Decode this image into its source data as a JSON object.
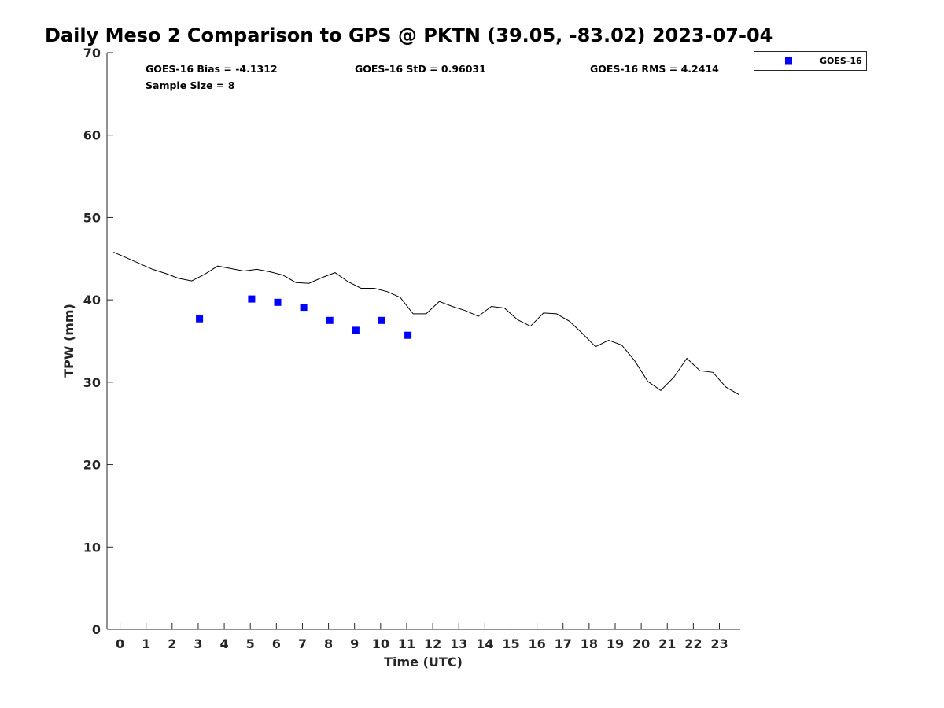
{
  "chart_data": {
    "type": "scatter",
    "title": "Daily Meso 2 Comparison to GPS @ PKTN (39.05, -83.02) 2023-07-04",
    "xlabel": "Time (UTC)",
    "ylabel": "TPW (mm)",
    "xlim": [
      -0.5,
      23.8
    ],
    "ylim": [
      0,
      70
    ],
    "xticks": [
      0,
      1,
      2,
      3,
      4,
      5,
      6,
      7,
      8,
      9,
      10,
      11,
      12,
      13,
      14,
      15,
      16,
      17,
      18,
      19,
      20,
      21,
      22,
      23
    ],
    "yticks": [
      0,
      10,
      20,
      30,
      40,
      50,
      60,
      70
    ],
    "grid": false,
    "legend_position": "top-right, outside plot",
    "stats": {
      "bias": "GOES-16 Bias = -4.1312",
      "std": "GOES-16 StD = 0.96031",
      "rms": "GOES-16 RMS = 4.2414",
      "sample": "Sample Size = 8"
    },
    "series": [
      {
        "type": "line",
        "color": "#000000",
        "x": [
          -0.25,
          0.25,
          0.75,
          1.25,
          1.75,
          2.25,
          2.75,
          3.25,
          3.75,
          4.25,
          4.75,
          5.25,
          5.75,
          6.25,
          6.75,
          7.25,
          7.75,
          8.25,
          8.75,
          9.25,
          9.75,
          10.25,
          10.75,
          11.25,
          11.75,
          12.25,
          12.75,
          13.25,
          13.75,
          14.25,
          14.75,
          15.25,
          15.75,
          16.25,
          16.75,
          17.25,
          17.75,
          18.25,
          18.75,
          19.25,
          19.75,
          20.25,
          20.75,
          21.25,
          21.75,
          22.25,
          22.75,
          23.25,
          23.75
        ],
        "y": [
          45.8,
          45.1,
          44.4,
          43.7,
          43.2,
          42.6,
          42.3,
          43.1,
          44.1,
          43.8,
          43.5,
          43.7,
          43.4,
          43.0,
          42.1,
          42.0,
          42.7,
          43.3,
          42.2,
          41.4,
          41.4,
          41.0,
          40.3,
          38.3,
          38.3,
          39.8,
          39.2,
          38.7,
          38.0,
          39.2,
          39.0,
          37.6,
          36.8,
          38.4,
          38.3,
          37.4,
          35.9,
          34.3,
          35.1,
          34.5,
          32.6,
          30.1,
          29.0,
          30.6,
          32.9,
          31.4,
          31.2,
          29.4,
          28.5
        ]
      },
      {
        "type": "scatter",
        "name": "GOES-16",
        "color": "#0000ff",
        "marker": "square",
        "x": [
          3.05,
          5.05,
          6.05,
          7.05,
          8.05,
          9.05,
          10.05,
          11.05
        ],
        "y": [
          37.7,
          40.1,
          39.7,
          39.1,
          37.5,
          36.3,
          37.5,
          35.7
        ]
      }
    ]
  }
}
